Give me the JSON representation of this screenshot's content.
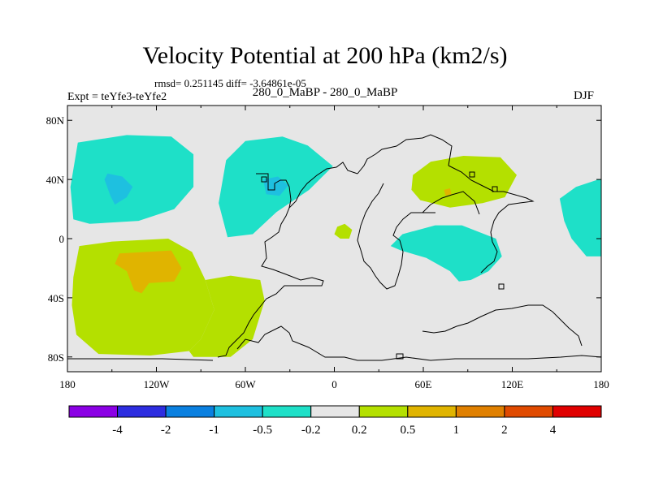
{
  "chart_data": {
    "type": "map",
    "title": "Velocity Potential at 200 hPa (km2/s)",
    "rmsd_text": "rmsd= 0.251145 diff= -3.64861e-05",
    "experiment": "Expt = teYfe3-teYfe2",
    "case_label": "280_0_MaBP - 280_0_MaBP",
    "season": "DJF",
    "lon_range": [
      -180,
      180
    ],
    "lat_range": [
      -90,
      90
    ],
    "x_ticks": [
      {
        "lon": -180,
        "label": "180"
      },
      {
        "lon": -120,
        "label": "120W"
      },
      {
        "lon": -60,
        "label": "60W"
      },
      {
        "lon": 0,
        "label": "0"
      },
      {
        "lon": 60,
        "label": "60E"
      },
      {
        "lon": 120,
        "label": "120E"
      },
      {
        "lon": 180,
        "label": "180"
      }
    ],
    "y_ticks": [
      {
        "lat": 80,
        "label": "80N"
      },
      {
        "lat": 40,
        "label": "40N"
      },
      {
        "lat": 0,
        "label": "0"
      },
      {
        "lat": -40,
        "label": "40S"
      },
      {
        "lat": -80,
        "label": "80S"
      }
    ],
    "colorbar": {
      "colors": [
        "#8b00e5",
        "#2d2de0",
        "#0a80e0",
        "#1ec0e0",
        "#1ee0c8",
        "#e6e6e6",
        "#b4e000",
        "#e0b400",
        "#e08000",
        "#e04a00",
        "#e00000"
      ],
      "labels": [
        "-4",
        "-2",
        "-1",
        "-0.5",
        "-0.2",
        "0.2",
        "0.5",
        "1",
        "2",
        "4"
      ]
    },
    "anomaly_regions": [
      {
        "name": "north-pacific-negative",
        "level": "-0.5 to -0.2",
        "color": "#1ee0c8",
        "points": [
          [
            -173,
            65
          ],
          [
            -140,
            70
          ],
          [
            -110,
            69
          ],
          [
            -95,
            57
          ],
          [
            -95,
            35
          ],
          [
            -108,
            20
          ],
          [
            -132,
            12
          ],
          [
            -165,
            10
          ],
          [
            -176,
            13
          ],
          [
            -178,
            35
          ]
        ]
      },
      {
        "name": "north-pacific-core",
        "level": "-1 to -0.5",
        "color": "#1ec0e0",
        "points": [
          [
            -153,
            44
          ],
          [
            -143,
            42
          ],
          [
            -136,
            35
          ],
          [
            -140,
            28
          ],
          [
            -148,
            23
          ],
          [
            -151,
            29
          ],
          [
            -155,
            40
          ]
        ]
      },
      {
        "name": "north-atlantic-negative",
        "level": "-0.5 to -0.2",
        "color": "#1ee0c8",
        "points": [
          [
            -73,
            53
          ],
          [
            -60,
            66
          ],
          [
            -35,
            69
          ],
          [
            -18,
            63
          ],
          [
            -1,
            49
          ],
          [
            -17,
            33
          ],
          [
            -39,
            18
          ],
          [
            -55,
            3
          ],
          [
            -72,
            1
          ],
          [
            -78,
            24
          ]
        ]
      },
      {
        "name": "north-atlantic-core",
        "level": "-1 to -0.5",
        "color": "#1ec0e0",
        "points": [
          [
            -48,
            40
          ],
          [
            -38,
            42
          ],
          [
            -31,
            36
          ],
          [
            -37,
            29
          ],
          [
            -46,
            30
          ]
        ]
      },
      {
        "name": "south-pacific-positive",
        "level": "0.2 to 0.5",
        "color": "#b4e000",
        "points": [
          [
            -172,
            -5
          ],
          [
            -150,
            -2
          ],
          [
            -112,
            0
          ],
          [
            -96,
            -9
          ],
          [
            -87,
            -28
          ],
          [
            -81,
            -48
          ],
          [
            -90,
            -68
          ],
          [
            -98,
            -76
          ],
          [
            -124,
            -79
          ],
          [
            -159,
            -78
          ],
          [
            -174,
            -65
          ],
          [
            -177,
            -45
          ],
          [
            -176,
            -26
          ]
        ]
      },
      {
        "name": "south-pacific-core",
        "level": "0.5 to 1",
        "color": "#e0b400",
        "points": [
          [
            -145,
            -10
          ],
          [
            -110,
            -8
          ],
          [
            -103,
            -20
          ],
          [
            -108,
            -29
          ],
          [
            -125,
            -30
          ],
          [
            -130,
            -37
          ],
          [
            -135,
            -35
          ],
          [
            -140,
            -22
          ],
          [
            -148,
            -17
          ]
        ]
      },
      {
        "name": "south-atlantic-positive",
        "level": "0.2 to 0.5",
        "color": "#b4e000",
        "points": [
          [
            -50,
            -28
          ],
          [
            -47,
            -42
          ],
          [
            -55,
            -68
          ],
          [
            -70,
            -80
          ],
          [
            -95,
            -80
          ],
          [
            -98,
            -76
          ],
          [
            -90,
            -68
          ],
          [
            -81,
            -48
          ],
          [
            -87,
            -28
          ],
          [
            -70,
            -25
          ]
        ]
      },
      {
        "name": "africa-small-positive",
        "level": "0.2 to 0.5",
        "color": "#b4e000",
        "points": [
          [
            2,
            8
          ],
          [
            7,
            10
          ],
          [
            12,
            6
          ],
          [
            10,
            0
          ],
          [
            4,
            0
          ],
          [
            0,
            3
          ]
        ]
      },
      {
        "name": "asia-positive",
        "level": "0.2 to 0.5",
        "color": "#b4e000",
        "points": [
          [
            53,
            43
          ],
          [
            65,
            52
          ],
          [
            87,
            56
          ],
          [
            112,
            55
          ],
          [
            123,
            43
          ],
          [
            115,
            28
          ],
          [
            100,
            24
          ],
          [
            78,
            21
          ],
          [
            58,
            26
          ],
          [
            52,
            33
          ]
        ]
      },
      {
        "name": "asia-core",
        "level": "0.5 to 1",
        "color": "#e0b400",
        "points": [
          [
            74,
            33
          ],
          [
            78,
            34
          ],
          [
            79,
            30
          ],
          [
            75,
            29
          ]
        ]
      },
      {
        "name": "indian-ocean-negative",
        "level": "-0.5 to -0.2",
        "color": "#1ee0c8",
        "points": [
          [
            38,
            -5
          ],
          [
            46,
            3
          ],
          [
            68,
            9
          ],
          [
            86,
            9
          ],
          [
            109,
            0
          ],
          [
            113,
            -12
          ],
          [
            104,
            -22
          ],
          [
            92,
            -28
          ],
          [
            84,
            -29
          ],
          [
            78,
            -22
          ],
          [
            62,
            -13
          ],
          [
            45,
            -8
          ]
        ]
      },
      {
        "name": "east-pacific-negative",
        "level": "-0.5 to -0.2",
        "color": "#1ee0c8",
        "points": [
          [
            152,
            27
          ],
          [
            163,
            35
          ],
          [
            178,
            40
          ],
          [
            180,
            40
          ],
          [
            180,
            -12
          ],
          [
            170,
            -12
          ],
          [
            160,
            0
          ],
          [
            155,
            12
          ]
        ]
      }
    ]
  }
}
